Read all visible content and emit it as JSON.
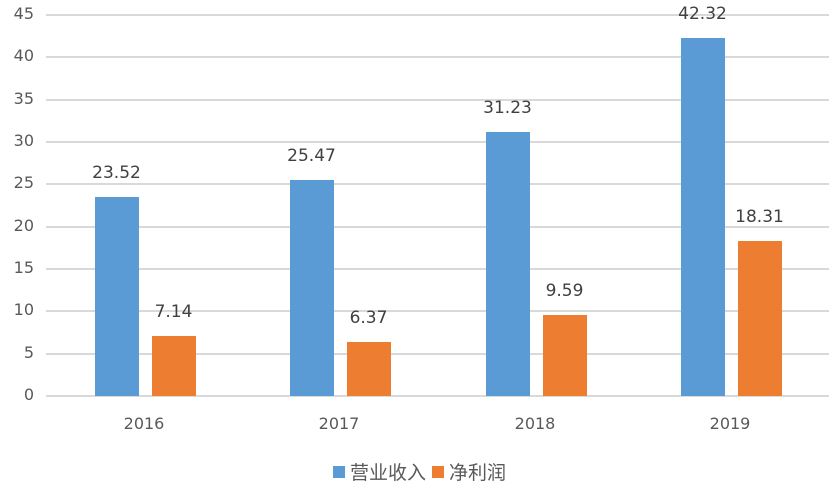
{
  "chart_data": {
    "type": "bar",
    "title": "",
    "xlabel": "",
    "ylabel": "",
    "categories": [
      "2016",
      "2017",
      "2018",
      "2019"
    ],
    "series": [
      {
        "name": "营业收入",
        "color": "#5b9bd5",
        "values": [
          23.52,
          25.47,
          31.23,
          42.32
        ]
      },
      {
        "name": "净利润",
        "color": "#ed7d31",
        "values": [
          7.14,
          6.37,
          9.59,
          18.31
        ]
      }
    ],
    "data_labels": {
      "营业收入": [
        "23.52",
        "25.47",
        "31.23",
        "42.32"
      ],
      "净利润": [
        "7.14",
        "6.37",
        "9.59",
        "18.31"
      ]
    },
    "ylim": [
      0,
      45
    ],
    "yticks": [
      "0",
      "5",
      "10",
      "15",
      "20",
      "25",
      "30",
      "35",
      "40",
      "45"
    ],
    "grid": true,
    "legend_position": "bottom"
  }
}
